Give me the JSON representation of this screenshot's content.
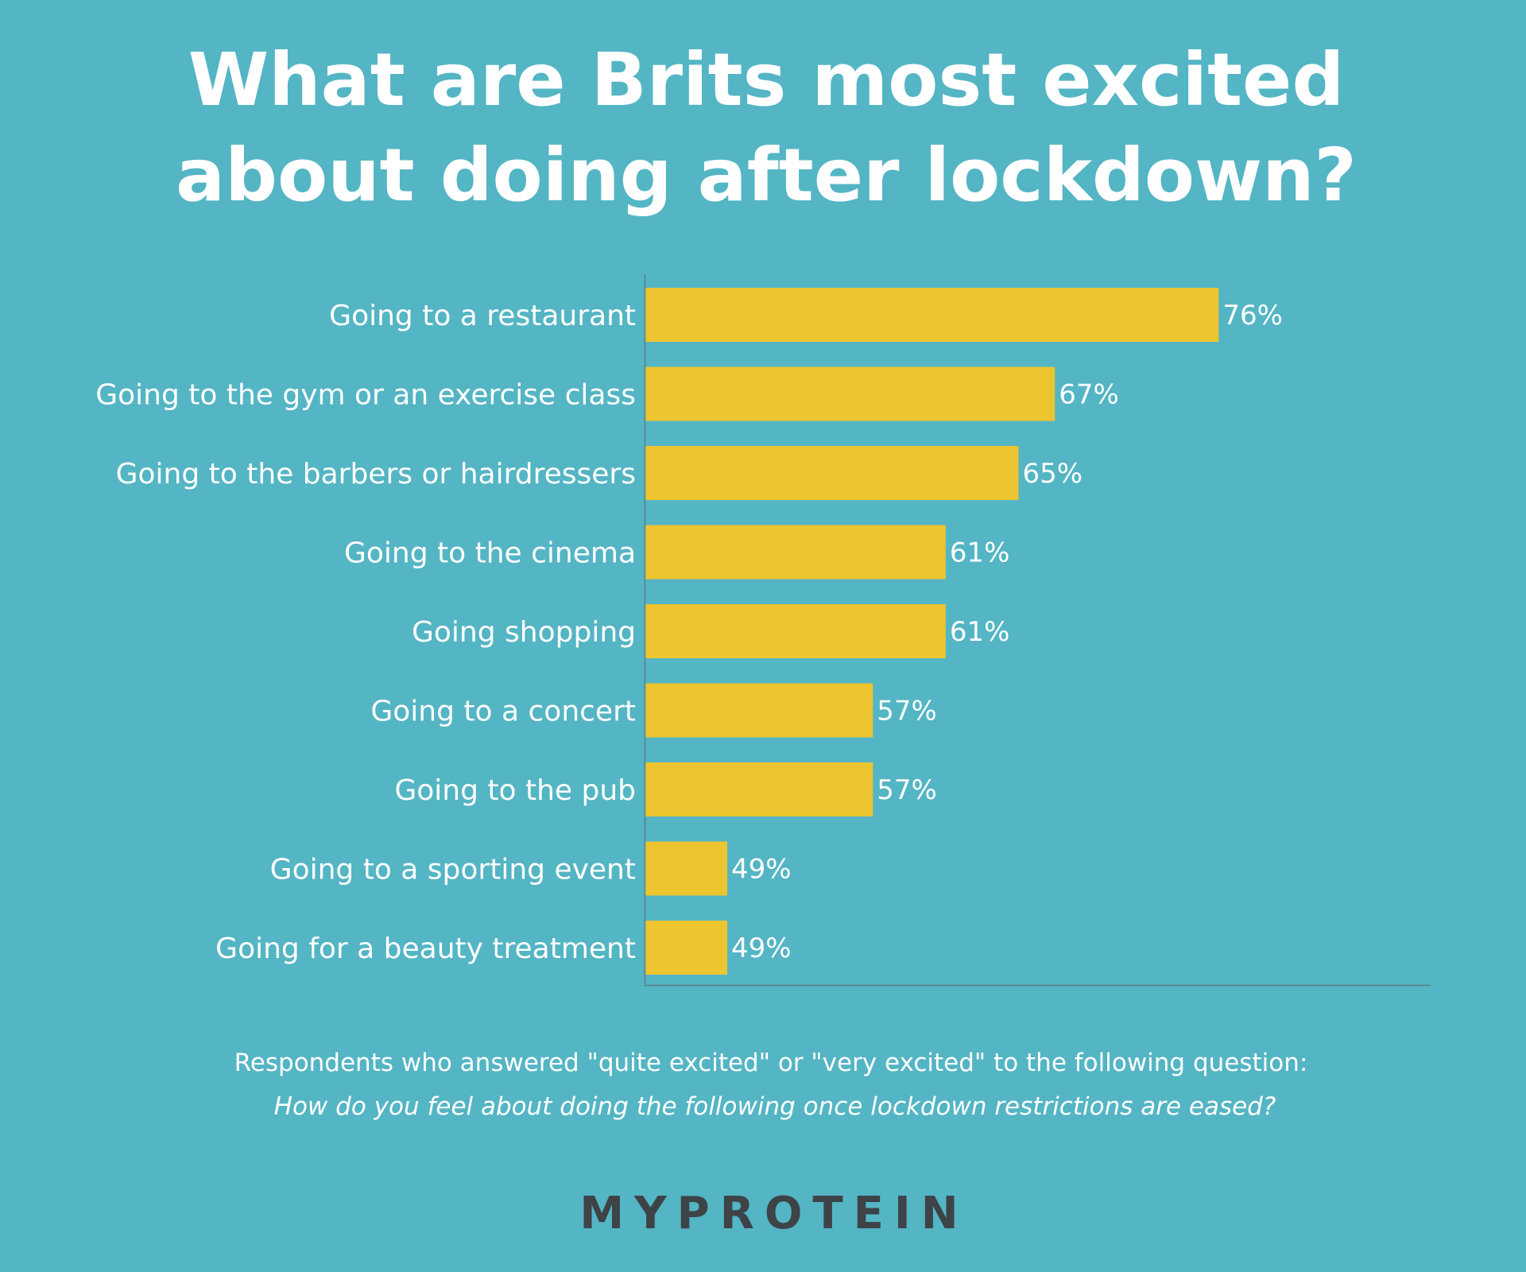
{
  "colors": {
    "background": "#54b5c4",
    "bar": "#ecc530",
    "text": "#ffffff",
    "axis": "#5a7f86",
    "brand": "#3d4347"
  },
  "chart_data": {
    "type": "bar",
    "orientation": "horizontal",
    "title": "What are Brits most excited about doing after lockdown?",
    "title_lines": [
      "What are Brits most excited",
      "about doing after lockdown?"
    ],
    "categories": [
      "Going to a restaurant",
      "Going to the gym or an exercise class",
      "Going to the barbers or hairdressers",
      "Going to the cinema",
      "Going shopping",
      "Going to a concert",
      "Going to the pub",
      "Going to a sporting event",
      "Going for a beauty treatment"
    ],
    "values": [
      76,
      67,
      65,
      61,
      61,
      57,
      57,
      49,
      49
    ],
    "value_labels": [
      "76%",
      "67%",
      "65%",
      "61%",
      "61%",
      "57%",
      "57%",
      "49%",
      "49%"
    ],
    "xlim": [
      44.5,
      80
    ],
    "grid": false,
    "legend": "none"
  },
  "footnote": {
    "line1": "Respondents who answered \"quite excited\" or \"very excited\" to the following question:",
    "line2": "How do you feel about doing the following once lockdown restrictions are eased?"
  },
  "brand": {
    "name": "MYPROTEIN"
  }
}
